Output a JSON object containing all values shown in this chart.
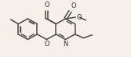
{
  "bg_color": "#f5f0e8",
  "bond_color": "#4a4a4a",
  "bond_width": 1.1,
  "figsize": [
    1.67,
    0.73
  ],
  "dpi": 100,
  "xlim": [
    0,
    167
  ],
  "ylim": [
    0,
    73
  ]
}
